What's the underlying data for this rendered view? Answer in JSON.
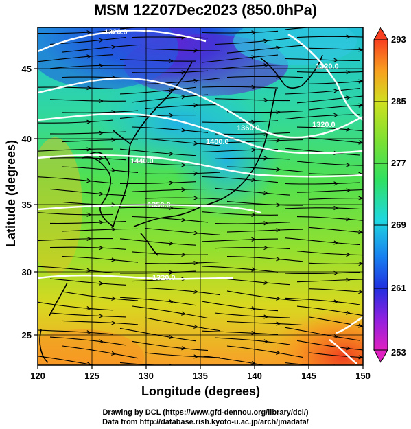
{
  "title": "MSM 12Z07Dec2023 (850.0hPa)",
  "axes": {
    "xlabel": "Longitude (degrees)",
    "ylabel": "Latitude  (degrees)",
    "xticks": [
      "120",
      "125",
      "130",
      "135",
      "140",
      "145",
      "150"
    ],
    "yticks": [
      "25",
      "30",
      "35",
      "40",
      "45"
    ],
    "xlim": [
      120,
      150
    ],
    "ylim": [
      22.4,
      47.6
    ]
  },
  "colorbar": {
    "ticks": [
      "293",
      "285",
      "277",
      "269",
      "261",
      "253"
    ],
    "range": [
      253,
      293
    ]
  },
  "contour_labels": [
    "1320.0",
    "1360.0",
    "1400.0",
    "1440.0",
    "1350.0",
    "1320.0",
    "1320.0",
    "1320.0"
  ],
  "credits": [
    "Drawing by DCL (https://www.gfd-dennou.org/library/dcl/)",
    "Data from http://database.rish.kyoto-u.ac.jp/arch/jmadata/"
  ]
}
